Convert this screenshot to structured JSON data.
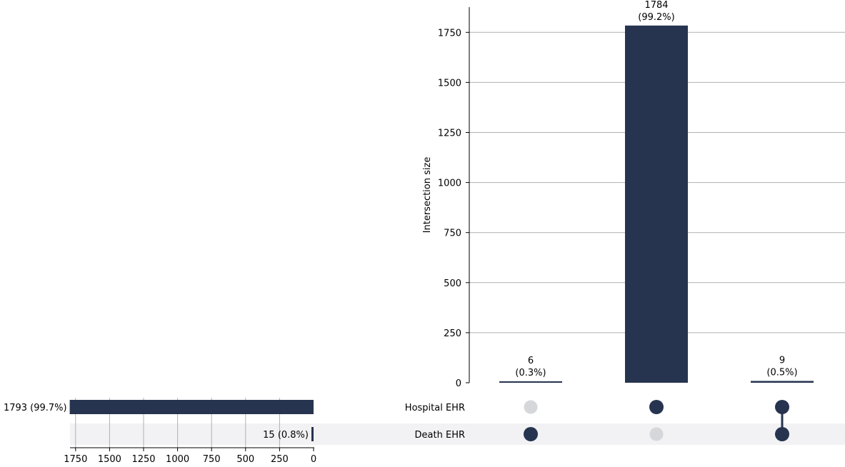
{
  "chart_data": {
    "type": "upset",
    "color": "#263450",
    "inactive_dot_color": "#d5d7db",
    "shade_color": "#f2f2f4",
    "grid_color": "#b0b0b0",
    "intersections": {
      "ylabel": "Intersection size",
      "ylim": [
        0,
        1870
      ],
      "yticks": [
        0,
        250,
        500,
        750,
        1000,
        1250,
        1500,
        1750
      ],
      "bars": [
        {
          "value": 6,
          "count_label": "6",
          "pct_label": "(0.3%)",
          "membership": [
            false,
            true
          ]
        },
        {
          "value": 1784,
          "count_label": "1784",
          "pct_label": "(99.2%)",
          "membership": [
            true,
            false
          ]
        },
        {
          "value": 9,
          "count_label": "9",
          "pct_label": "(0.5%)",
          "membership": [
            true,
            true
          ]
        }
      ]
    },
    "sets": {
      "xlim": [
        0,
        1793
      ],
      "xticks": [
        1750,
        1500,
        1250,
        1000,
        750,
        500,
        250,
        0
      ],
      "items": [
        {
          "name": "Hospital EHR",
          "value": 1793,
          "label": "1793 (99.7%)"
        },
        {
          "name": "Death EHR",
          "value": 15,
          "label": "15 (0.8%)"
        }
      ]
    }
  }
}
